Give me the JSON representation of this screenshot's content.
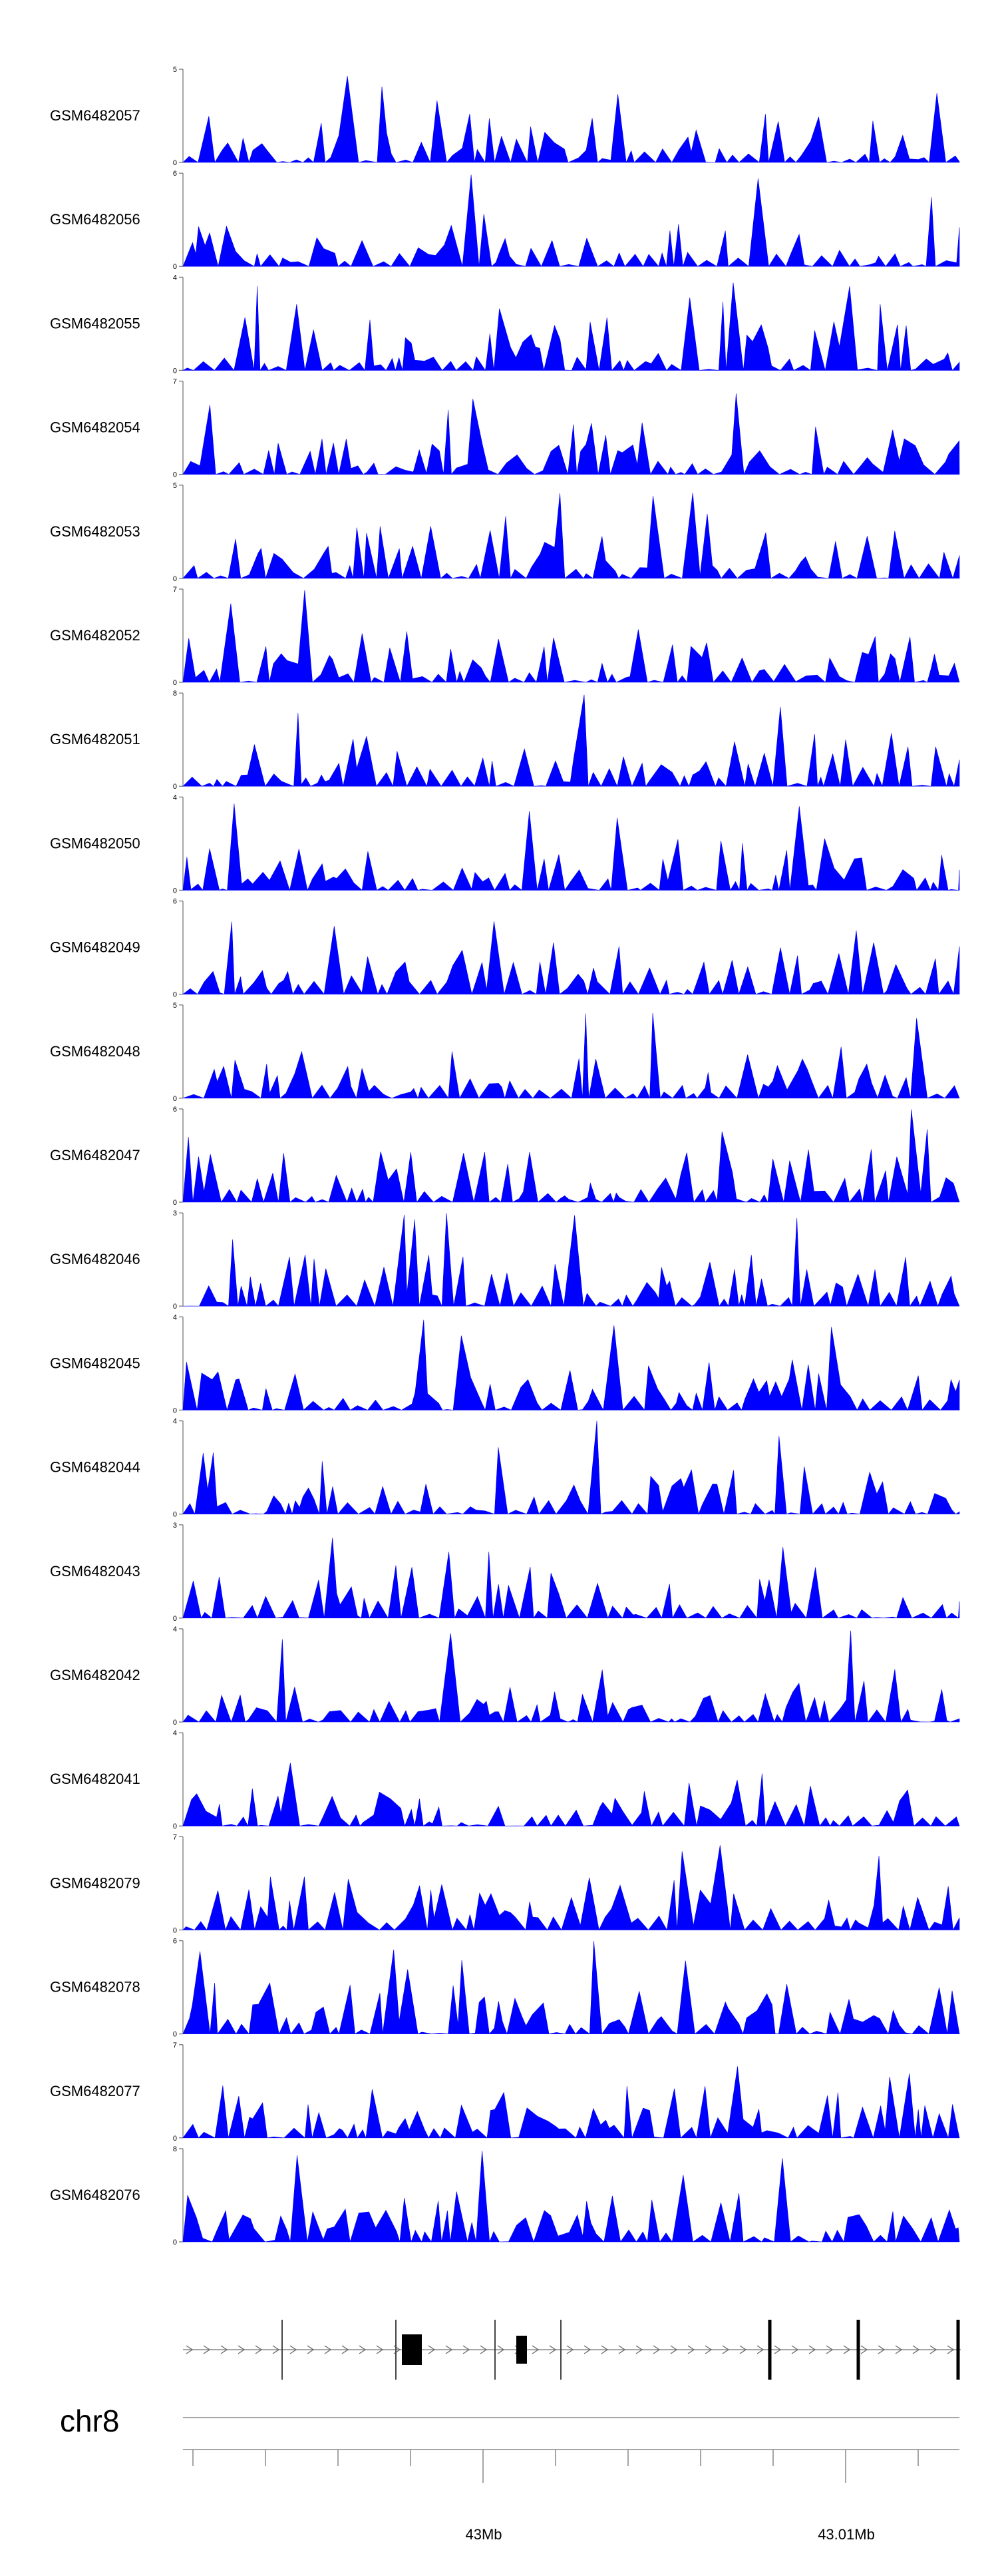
{
  "chart_data": {
    "type": "area",
    "colors": {
      "signal": "#0000ff",
      "gene": "#000000",
      "axis": "#777777"
    },
    "tracks": [
      {
        "name": "GSM6482057",
        "ymax": 5,
        "y_ticks": [
          "5",
          "0"
        ]
      },
      {
        "name": "GSM6482056",
        "ymax": 6,
        "y_ticks": [
          "6",
          "0"
        ]
      },
      {
        "name": "GSM6482055",
        "ymax": 4,
        "y_ticks": [
          "4",
          "0"
        ]
      },
      {
        "name": "GSM6482054",
        "ymax": 7,
        "y_ticks": [
          "7",
          "0"
        ]
      },
      {
        "name": "GSM6482053",
        "ymax": 5,
        "y_ticks": [
          "5",
          "0"
        ]
      },
      {
        "name": "GSM6482052",
        "ymax": 7,
        "y_ticks": [
          "7",
          "0"
        ]
      },
      {
        "name": "GSM6482051",
        "ymax": 8,
        "y_ticks": [
          "8",
          "0"
        ]
      },
      {
        "name": "GSM6482050",
        "ymax": 4,
        "y_ticks": [
          "4",
          "0"
        ]
      },
      {
        "name": "GSM6482049",
        "ymax": 6,
        "y_ticks": [
          "6",
          "0"
        ]
      },
      {
        "name": "GSM6482048",
        "ymax": 5,
        "y_ticks": [
          "5",
          "0"
        ]
      },
      {
        "name": "GSM6482047",
        "ymax": 6,
        "y_ticks": [
          "6",
          "0"
        ]
      },
      {
        "name": "GSM6482046",
        "ymax": 3,
        "y_ticks": [
          "3",
          "0"
        ]
      },
      {
        "name": "GSM6482045",
        "ymax": 4,
        "y_ticks": [
          "4",
          "0"
        ]
      },
      {
        "name": "GSM6482044",
        "ymax": 4,
        "y_ticks": [
          "4",
          "0"
        ]
      },
      {
        "name": "GSM6482043",
        "ymax": 3,
        "y_ticks": [
          "3",
          "0"
        ]
      },
      {
        "name": "GSM6482042",
        "ymax": 4,
        "y_ticks": [
          "4",
          "0"
        ]
      },
      {
        "name": "GSM6482041",
        "ymax": 4,
        "y_ticks": [
          "4",
          "0"
        ]
      },
      {
        "name": "GSM6482079",
        "ymax": 7,
        "y_ticks": [
          "7",
          "0"
        ]
      },
      {
        "name": "GSM6482078",
        "ymax": 6,
        "y_ticks": [
          "6",
          "0"
        ]
      },
      {
        "name": "GSM6482077",
        "ymax": 7,
        "y_ticks": [
          "7",
          "0"
        ]
      },
      {
        "name": "GSM6482076",
        "ymax": 8,
        "y_ticks": [
          "8",
          "0"
        ]
      }
    ],
    "gene_track": {
      "strand": "+",
      "exons": [
        {
          "kind": "line"
        },
        {
          "kind": "line"
        },
        {
          "kind": "box"
        },
        {
          "kind": "line"
        },
        {
          "kind": "box"
        },
        {
          "kind": "line"
        },
        {
          "kind": "line"
        },
        {
          "kind": "line"
        },
        {
          "kind": "line"
        }
      ]
    },
    "genome_axis": {
      "chromosome": "chr8",
      "tick_labels": [
        "43Mb",
        "43.01Mb"
      ]
    }
  }
}
